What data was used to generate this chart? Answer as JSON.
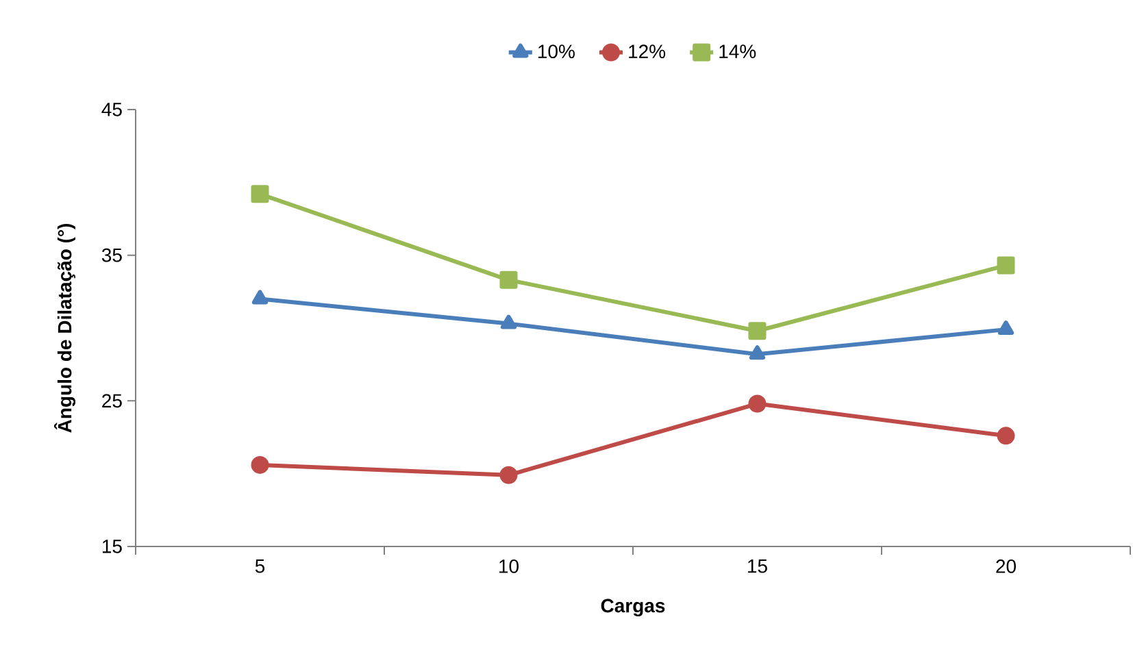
{
  "chart_data": {
    "type": "line",
    "xlabel": "Cargas",
    "ylabel": "Ângulo de Dilatação (°)",
    "categories": [
      "5",
      "10",
      "15",
      "20"
    ],
    "series": [
      {
        "name": "10%",
        "color": "#4a7ebb",
        "marker": "triangle",
        "values": [
          32.0,
          30.3,
          28.2,
          29.9
        ]
      },
      {
        "name": "12%",
        "color": "#be4b48",
        "marker": "circle",
        "values": [
          20.6,
          19.9,
          24.8,
          22.6
        ]
      },
      {
        "name": "14%",
        "color": "#98b954",
        "marker": "square",
        "values": [
          39.2,
          33.3,
          29.8,
          34.3
        ]
      }
    ],
    "ylim": [
      15,
      45
    ],
    "yticks": [
      15,
      25,
      35,
      45
    ],
    "legend": "top",
    "line_style": "solid"
  }
}
